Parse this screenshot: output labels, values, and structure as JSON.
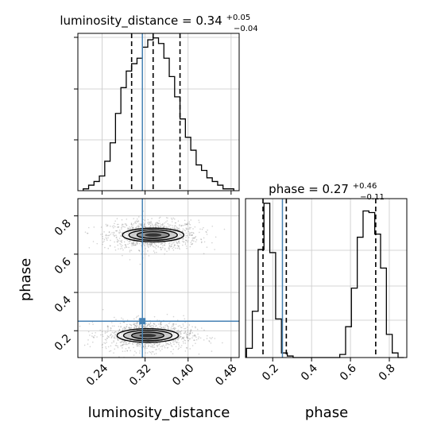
{
  "chart_data": {
    "type": "corner",
    "parameters": [
      "luminosity_distance",
      "phase"
    ],
    "truths": {
      "luminosity_distance": 0.315,
      "phase": 0.25
    },
    "colors": {
      "truth": "#4682b4",
      "hist": "#000000",
      "grid": "#c8c8c8",
      "scatter": "#808080"
    },
    "grid": true,
    "panels": [
      {
        "id": "luminosity_distance_hist",
        "type": "step-histogram",
        "title": {
          "prefix": "luminosity_distance = 0.34",
          "sup": "+0.05",
          "sub": "−0.04"
        },
        "xlim": [
          0.195,
          0.495
        ],
        "quantile_lines": [
          0.295,
          0.335,
          0.385
        ],
        "bin_edges": [
          0.205,
          0.215,
          0.225,
          0.235,
          0.245,
          0.255,
          0.265,
          0.275,
          0.285,
          0.295,
          0.305,
          0.315,
          0.325,
          0.335,
          0.345,
          0.355,
          0.365,
          0.375,
          0.385,
          0.395,
          0.405,
          0.415,
          0.425,
          0.435,
          0.445,
          0.455,
          0.465,
          0.475,
          0.485
        ],
        "counts": [
          1,
          3,
          5,
          8,
          16,
          26,
          42,
          56,
          65,
          69,
          72,
          78,
          82,
          83,
          80,
          72,
          62,
          51,
          39,
          29,
          22,
          14,
          11,
          7,
          5,
          3,
          1,
          1
        ]
      },
      {
        "id": "phase_hist",
        "type": "step-histogram",
        "title": {
          "prefix": "phase = 0.27",
          "sup": "+0.46",
          "sub": "−0.11"
        },
        "xlim": [
          0.06,
          0.89
        ],
        "quantile_lines": [
          0.15,
          0.27,
          0.73
        ],
        "bin_edges": [
          0.065,
          0.095,
          0.125,
          0.155,
          0.185,
          0.215,
          0.245,
          0.275,
          0.305,
          0.335,
          0.365,
          0.395,
          0.425,
          0.455,
          0.485,
          0.515,
          0.545,
          0.575,
          0.605,
          0.635,
          0.665,
          0.695,
          0.725,
          0.755,
          0.785,
          0.815,
          0.845,
          0.875
        ],
        "counts": [
          6,
          30,
          70,
          100,
          68,
          25,
          3,
          1,
          0,
          0,
          0,
          0,
          0,
          0,
          0,
          0,
          2,
          20,
          45,
          78,
          95,
          94,
          80,
          58,
          15,
          3,
          0
        ]
      },
      {
        "id": "luminosity_distance_vs_phase",
        "type": "2d-density",
        "xlim": [
          0.195,
          0.495
        ],
        "ylim": [
          0.06,
          0.89
        ],
        "xticks": [
          0.24,
          0.32,
          0.4,
          0.48
        ],
        "yticks": [
          0.2,
          0.4,
          0.6,
          0.8
        ],
        "modes": [
          {
            "x": 0.335,
            "y": 0.7
          },
          {
            "x": 0.325,
            "y": 0.175
          }
        ]
      }
    ],
    "tick_labels": {
      "x_ld": [
        "0.24",
        "0.32",
        "0.40",
        "0.48"
      ],
      "y_phase": [
        "0.2",
        "0.4",
        "0.6",
        "0.8"
      ],
      "x_phase": [
        "0.2",
        "0.4",
        "0.6",
        "0.8"
      ]
    },
    "axis_labels": {
      "x_ld": "luminosity_distance",
      "y_phase": "phase",
      "x_phase": "phase"
    }
  }
}
